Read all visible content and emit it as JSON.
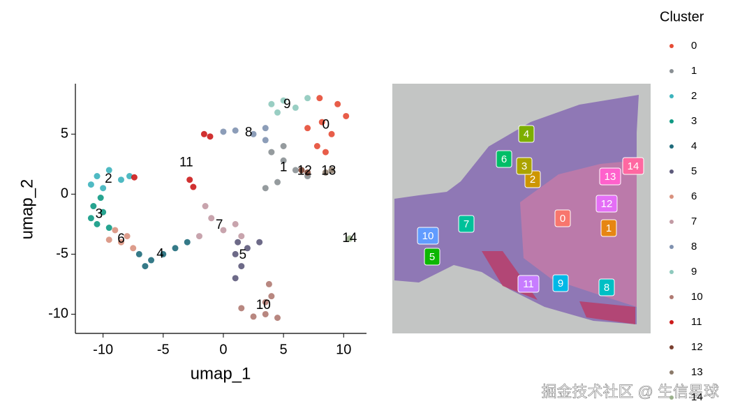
{
  "chart_data": {
    "type": "scatter",
    "xlabel": "umap_1",
    "ylabel": "umap_2",
    "xlim": [
      -12.3,
      11.9
    ],
    "ylim": [
      -11.6,
      9.2
    ],
    "xticks": [
      -10,
      -5,
      0,
      5,
      10
    ],
    "yticks": [
      -10,
      -5,
      0,
      5
    ],
    "legend_title": "Cluster",
    "legend": "right",
    "watermark": "掘金技术社区 @ 生信星球",
    "spatial_colors": [
      "#f8766d",
      "#e68613",
      "#cd9600",
      "#aba300",
      "#7cae00",
      "#0cb702",
      "#00be67",
      "#00c19a",
      "#00bfc4",
      "#00b8e7",
      "#619cff",
      "#c77cff",
      "#e46ef6",
      "#ff61cc",
      "#ff68a1"
    ],
    "series": [
      {
        "name": "0",
        "color": "#e64b35",
        "x": [
          8,
          9.5,
          10.2,
          8.2,
          9,
          7.8,
          8.5,
          7
        ],
        "y": [
          8,
          7.5,
          6.5,
          6,
          5,
          4,
          3.5,
          5.5
        ]
      },
      {
        "name": "1",
        "color": "#8a9094",
        "x": [
          4,
          5,
          6,
          7,
          4.5,
          3.5,
          5
        ],
        "y": [
          3.5,
          2.8,
          2,
          1.5,
          1,
          0.5,
          4
        ]
      },
      {
        "name": "2",
        "color": "#3cb3bd",
        "x": [
          -10.5,
          -9.5,
          -10,
          -11,
          -8.5,
          -7.8
        ],
        "y": [
          1.5,
          2,
          0.5,
          0.8,
          1.2,
          1.5
        ]
      },
      {
        "name": "3",
        "color": "#109a84",
        "x": [
          -10.8,
          -10.5,
          -11,
          -10,
          -9.5,
          -10.2
        ],
        "y": [
          -1,
          -2.5,
          -2,
          -1.5,
          -2.8,
          -0.3
        ]
      },
      {
        "name": "4",
        "color": "#1f6b7b",
        "x": [
          -7,
          -6,
          -5,
          -6.5,
          -4,
          -3
        ],
        "y": [
          -5,
          -5.5,
          -5,
          -6,
          -4.5,
          -4
        ]
      },
      {
        "name": "5",
        "color": "#5d5a7b",
        "x": [
          1,
          1.5,
          2,
          1,
          3,
          1.2
        ],
        "y": [
          -5,
          -6,
          -4.5,
          -7,
          -4,
          -4
        ]
      },
      {
        "name": "6",
        "color": "#d9917e",
        "x": [
          -9,
          -8.5,
          -8,
          -7.5,
          -9.5
        ],
        "y": [
          -3,
          -4,
          -3.5,
          -4.5,
          -3.8
        ]
      },
      {
        "name": "7",
        "color": "#c29aa4",
        "x": [
          -1,
          0,
          1,
          -2,
          1.5,
          -1.5
        ],
        "y": [
          -2,
          -3,
          -2.5,
          -3.5,
          -3.5,
          -1
        ]
      },
      {
        "name": "8",
        "color": "#8092b0",
        "x": [
          1,
          2.5,
          3.5,
          0,
          3.5
        ],
        "y": [
          5.3,
          5,
          5.5,
          5.2,
          4.5
        ]
      },
      {
        "name": "9",
        "color": "#8ec9bd",
        "x": [
          4,
          5,
          6,
          7,
          4.5
        ],
        "y": [
          7.5,
          7.8,
          7.2,
          8,
          6.8
        ]
      },
      {
        "name": "10",
        "color": "#b07a72",
        "x": [
          1.5,
          2.5,
          3.5,
          4.5,
          3.5,
          4,
          3.8
        ],
        "y": [
          -9.5,
          -10.2,
          -10,
          -10.3,
          -9,
          -8.5,
          -7.5
        ]
      },
      {
        "name": "11",
        "color": "#cc1b1b",
        "x": [
          -1.6,
          -1.1,
          -2.8,
          -2.5,
          -7.4
        ],
        "y": [
          5,
          4.8,
          1.2,
          0.6,
          1.4
        ]
      },
      {
        "name": "12",
        "color": "#7a4030",
        "x": [
          6.5,
          7
        ],
        "y": [
          2,
          1.8
        ]
      },
      {
        "name": "13",
        "color": "#8b7a6a",
        "x": [
          8.5,
          9
        ],
        "y": [
          1.8,
          2
        ]
      },
      {
        "name": "14",
        "color": "#9ab08b",
        "x": [
          10.5
        ],
        "y": [
          -3.7
        ]
      }
    ]
  }
}
